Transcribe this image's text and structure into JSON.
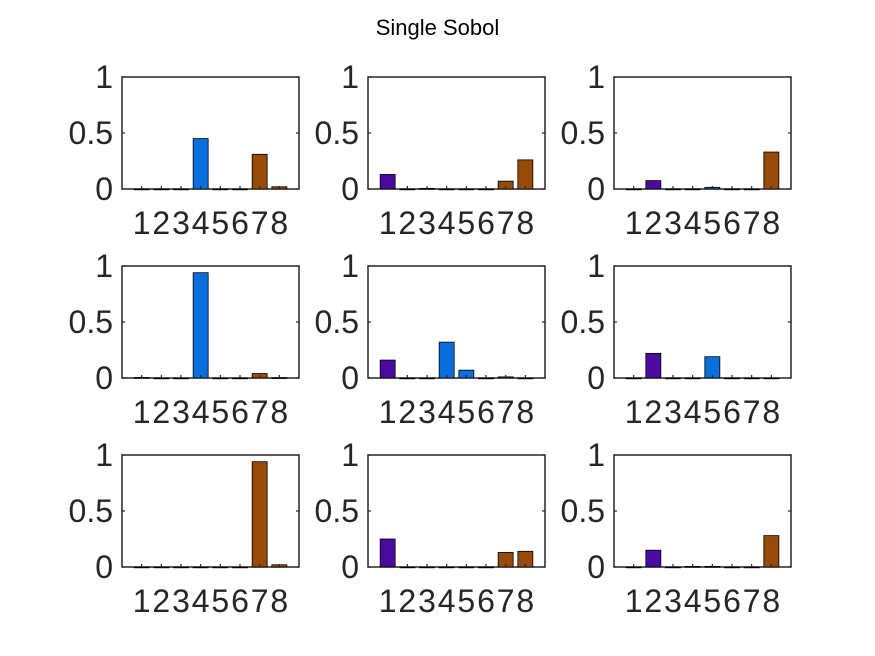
{
  "title": "Single Sobol",
  "colors": {
    "group_a": "#4b0aa0",
    "group_b": "#0a6edc",
    "group_c": "#964b0a",
    "axis": "#262626"
  },
  "bar_color_groups": [
    "group_a",
    "group_a",
    "group_a",
    "group_b",
    "group_b",
    "group_b",
    "group_c",
    "group_c"
  ],
  "chart_data": [
    {
      "type": "bar",
      "categories": [
        "1",
        "2",
        "3",
        "4",
        "5",
        "6",
        "7",
        "8"
      ],
      "values": [
        0,
        0,
        0,
        0.45,
        0,
        0,
        0.31,
        0.02
      ],
      "ylim": [
        0,
        1
      ],
      "yticks": [
        "0",
        "0.5",
        "1"
      ]
    },
    {
      "type": "bar",
      "categories": [
        "1",
        "2",
        "3",
        "4",
        "5",
        "6",
        "7",
        "8"
      ],
      "values": [
        0.13,
        0,
        0.005,
        0,
        0,
        0,
        0.07,
        0.26
      ],
      "ylim": [
        0,
        1
      ],
      "yticks": [
        "0",
        "0.5",
        "1"
      ]
    },
    {
      "type": "bar",
      "categories": [
        "1",
        "2",
        "3",
        "4",
        "5",
        "6",
        "7",
        "8"
      ],
      "values": [
        0,
        0.075,
        0,
        0,
        0.015,
        0,
        0,
        0.33
      ],
      "ylim": [
        0,
        1
      ],
      "yticks": [
        "0",
        "0.5",
        "1"
      ]
    },
    {
      "type": "bar",
      "categories": [
        "1",
        "2",
        "3",
        "4",
        "5",
        "6",
        "7",
        "8"
      ],
      "values": [
        0.005,
        0,
        0,
        0.94,
        0,
        0,
        0.04,
        0.003
      ],
      "ylim": [
        0,
        1
      ],
      "yticks": [
        "0",
        "0.5",
        "1"
      ]
    },
    {
      "type": "bar",
      "categories": [
        "1",
        "2",
        "3",
        "4",
        "5",
        "6",
        "7",
        "8"
      ],
      "values": [
        0.16,
        0,
        0,
        0.32,
        0.07,
        0,
        0.01,
        0
      ],
      "ylim": [
        0,
        1
      ],
      "yticks": [
        "0",
        "0.5",
        "1"
      ]
    },
    {
      "type": "bar",
      "categories": [
        "1",
        "2",
        "3",
        "4",
        "5",
        "6",
        "7",
        "8"
      ],
      "values": [
        0,
        0.22,
        0,
        0,
        0.19,
        0,
        0,
        0
      ],
      "ylim": [
        0,
        1
      ],
      "yticks": [
        "0",
        "0.5",
        "1"
      ]
    },
    {
      "type": "bar",
      "categories": [
        "1",
        "2",
        "3",
        "4",
        "5",
        "6",
        "7",
        "8"
      ],
      "values": [
        0,
        -0.005,
        0,
        0,
        0,
        0,
        0.94,
        0.02
      ],
      "ylim": [
        0,
        1
      ],
      "yticks": [
        "0",
        "0.5",
        "1"
      ]
    },
    {
      "type": "bar",
      "categories": [
        "1",
        "2",
        "3",
        "4",
        "5",
        "6",
        "7",
        "8"
      ],
      "values": [
        0.25,
        0,
        0,
        0,
        0,
        0,
        0.13,
        0.14
      ],
      "ylim": [
        0,
        1
      ],
      "yticks": [
        "0",
        "0.5",
        "1"
      ]
    },
    {
      "type": "bar",
      "categories": [
        "1",
        "2",
        "3",
        "4",
        "5",
        "6",
        "7",
        "8"
      ],
      "values": [
        0,
        0.15,
        0,
        0.005,
        0.005,
        0,
        0,
        0.28
      ],
      "ylim": [
        0,
        1
      ],
      "yticks": [
        "0",
        "0.5",
        "1"
      ]
    }
  ]
}
